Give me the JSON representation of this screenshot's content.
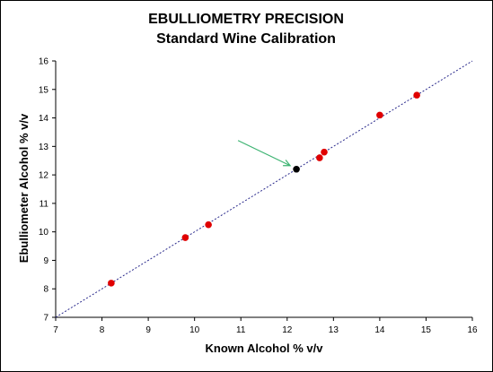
{
  "chart_data": {
    "type": "scatter",
    "title": "EBULLIOMETRY PRECISION",
    "subtitle": "Standard Wine Calibration",
    "xlabel": "Known Alcohol % v/v",
    "ylabel": "Ebulliometer Alcohol % v/v",
    "xlim": [
      7,
      16
    ],
    "ylim": [
      7,
      16
    ],
    "x_ticks": [
      "7",
      "8",
      "9",
      "10",
      "11",
      "12",
      "13",
      "14",
      "15",
      "16"
    ],
    "y_ticks": [
      "7",
      "8",
      "9",
      "10",
      "11",
      "12",
      "13",
      "14",
      "15",
      "16"
    ],
    "grid": false,
    "legend": "none",
    "series": [
      {
        "color": "#e00000",
        "points": [
          {
            "x": 8.2,
            "y": 8.2
          },
          {
            "x": 9.8,
            "y": 9.8
          },
          {
            "x": 10.3,
            "y": 10.25
          },
          {
            "x": 12.7,
            "y": 12.6
          },
          {
            "x": 12.8,
            "y": 12.8
          },
          {
            "x": 14.0,
            "y": 14.1
          },
          {
            "x": 14.8,
            "y": 14.8
          }
        ]
      },
      {
        "color": "#000000",
        "points": [
          {
            "x": 12.2,
            "y": 12.2
          }
        ]
      }
    ],
    "reference_line": {
      "from": [
        7,
        7
      ],
      "to": [
        16,
        16
      ],
      "color": "#2a2a8c",
      "style": "dotted"
    },
    "annotation": {
      "type": "arrow",
      "color": "#3cb371",
      "target": {
        "x": 12.2,
        "y": 12.2
      }
    }
  }
}
